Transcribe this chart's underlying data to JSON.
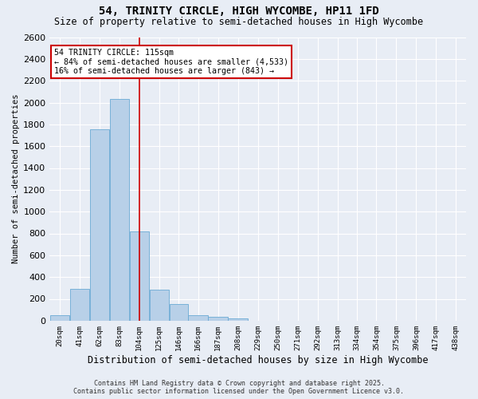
{
  "title": "54, TRINITY CIRCLE, HIGH WYCOMBE, HP11 1FD",
  "subtitle": "Size of property relative to semi-detached houses in High Wycombe",
  "xlabel": "Distribution of semi-detached houses by size in High Wycombe",
  "ylabel": "Number of semi-detached properties",
  "bin_labels": [
    "20sqm",
    "41sqm",
    "62sqm",
    "83sqm",
    "104sqm",
    "125sqm",
    "146sqm",
    "166sqm",
    "187sqm",
    "208sqm",
    "229sqm",
    "250sqm",
    "271sqm",
    "292sqm",
    "313sqm",
    "334sqm",
    "354sqm",
    "375sqm",
    "396sqm",
    "417sqm",
    "438sqm"
  ],
  "bin_left_edges": [
    20,
    41,
    62,
    83,
    104,
    125,
    146,
    166,
    187,
    208,
    229,
    250,
    271,
    292,
    313,
    334,
    354,
    375,
    396,
    417,
    438
  ],
  "bar_values": [
    50,
    295,
    1755,
    2030,
    820,
    285,
    150,
    50,
    35,
    20,
    0,
    0,
    0,
    0,
    0,
    0,
    0,
    0,
    0,
    0,
    0
  ],
  "bar_color": "#b8d0e8",
  "bar_edgecolor": "#6aaad4",
  "bg_color": "#e8edf5",
  "grid_color": "#ffffff",
  "vline_x": 115,
  "vline_color": "#cc0000",
  "annotation_title": "54 TRINITY CIRCLE: 115sqm",
  "annotation_line1": "← 84% of semi-detached houses are smaller (4,533)",
  "annotation_line2": "16% of semi-detached houses are larger (843) →",
  "annotation_box_facecolor": "#ffffff",
  "annotation_box_edgecolor": "#cc0000",
  "footer_line1": "Contains HM Land Registry data © Crown copyright and database right 2025.",
  "footer_line2": "Contains public sector information licensed under the Open Government Licence v3.0.",
  "ylim": [
    0,
    2600
  ],
  "ytick_interval": 200
}
